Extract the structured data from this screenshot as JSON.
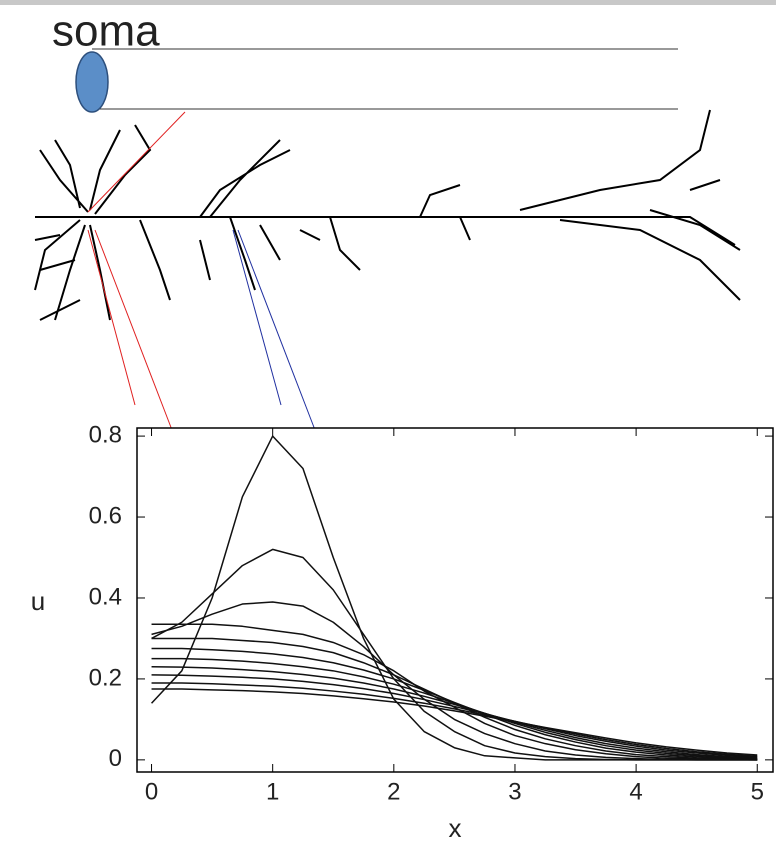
{
  "diagram": {
    "label": "soma"
  },
  "chart_data": {
    "type": "line",
    "x_label": "x",
    "y_label": "u",
    "x": [
      0,
      0.25,
      0.5,
      0.75,
      1,
      1.25,
      1.5,
      1.75,
      2,
      2.25,
      2.5,
      2.75,
      3,
      3.25,
      3.5,
      3.75,
      4,
      4.25,
      4.5,
      4.75,
      5
    ],
    "series": [
      {
        "color": "#111",
        "values": [
          0.14,
          0.22,
          0.4,
          0.65,
          0.8,
          0.72,
          0.5,
          0.3,
          0.15,
          0.07,
          0.03,
          0.01,
          0.005,
          0,
          0,
          0,
          0,
          0,
          0,
          0,
          0
        ]
      },
      {
        "color": "#111",
        "values": [
          0.3,
          0.34,
          0.41,
          0.48,
          0.52,
          0.5,
          0.42,
          0.31,
          0.2,
          0.12,
          0.07,
          0.035,
          0.017,
          0.008,
          0.003,
          0.001,
          0,
          0,
          0,
          0,
          0
        ]
      },
      {
        "color": "#111",
        "values": [
          0.31,
          0.33,
          0.36,
          0.385,
          0.39,
          0.38,
          0.34,
          0.28,
          0.21,
          0.15,
          0.1,
          0.065,
          0.04,
          0.022,
          0.012,
          0.006,
          0.003,
          0.001,
          0,
          0,
          0
        ]
      },
      {
        "color": "#111",
        "values": [
          0.335,
          0.335,
          0.335,
          0.33,
          0.32,
          0.31,
          0.29,
          0.26,
          0.22,
          0.17,
          0.13,
          0.09,
          0.06,
          0.04,
          0.025,
          0.015,
          0.008,
          0.004,
          0.002,
          0.001,
          0
        ]
      },
      {
        "color": "#111",
        "values": [
          0.3,
          0.3,
          0.3,
          0.295,
          0.29,
          0.28,
          0.265,
          0.24,
          0.21,
          0.175,
          0.14,
          0.105,
          0.075,
          0.052,
          0.035,
          0.022,
          0.013,
          0.008,
          0.004,
          0.002,
          0.001
        ]
      },
      {
        "color": "#111",
        "values": [
          0.275,
          0.275,
          0.272,
          0.268,
          0.262,
          0.253,
          0.24,
          0.222,
          0.2,
          0.172,
          0.142,
          0.113,
          0.085,
          0.062,
          0.044,
          0.029,
          0.019,
          0.012,
          0.007,
          0.004,
          0.002
        ]
      },
      {
        "color": "#111",
        "values": [
          0.25,
          0.25,
          0.248,
          0.244,
          0.238,
          0.23,
          0.22,
          0.205,
          0.187,
          0.165,
          0.14,
          0.115,
          0.09,
          0.068,
          0.05,
          0.035,
          0.024,
          0.016,
          0.01,
          0.006,
          0.003
        ]
      },
      {
        "color": "#111",
        "values": [
          0.23,
          0.229,
          0.227,
          0.223,
          0.218,
          0.211,
          0.202,
          0.19,
          0.175,
          0.157,
          0.137,
          0.115,
          0.093,
          0.073,
          0.055,
          0.04,
          0.029,
          0.02,
          0.013,
          0.008,
          0.005
        ]
      },
      {
        "color": "#111",
        "values": [
          0.21,
          0.209,
          0.207,
          0.204,
          0.2,
          0.194,
          0.186,
          0.176,
          0.164,
          0.149,
          0.132,
          0.114,
          0.095,
          0.077,
          0.06,
          0.046,
          0.034,
          0.024,
          0.017,
          0.011,
          0.007
        ]
      },
      {
        "color": "#111",
        "values": [
          0.19,
          0.19,
          0.188,
          0.185,
          0.182,
          0.177,
          0.17,
          0.162,
          0.152,
          0.14,
          0.126,
          0.111,
          0.095,
          0.079,
          0.064,
          0.05,
          0.038,
          0.028,
          0.02,
          0.014,
          0.009
        ]
      },
      {
        "color": "#111",
        "values": [
          0.175,
          0.175,
          0.173,
          0.171,
          0.168,
          0.164,
          0.158,
          0.151,
          0.143,
          0.133,
          0.121,
          0.108,
          0.094,
          0.08,
          0.067,
          0.054,
          0.042,
          0.032,
          0.024,
          0.017,
          0.012
        ]
      }
    ],
    "xlim": [
      -0.12,
      5.13
    ],
    "ylim": [
      -0.03,
      0.82
    ],
    "xticks": [
      0,
      1,
      2,
      3,
      4,
      5
    ],
    "yticks": [
      0,
      0.2,
      0.4,
      0.6,
      0.8
    ]
  }
}
